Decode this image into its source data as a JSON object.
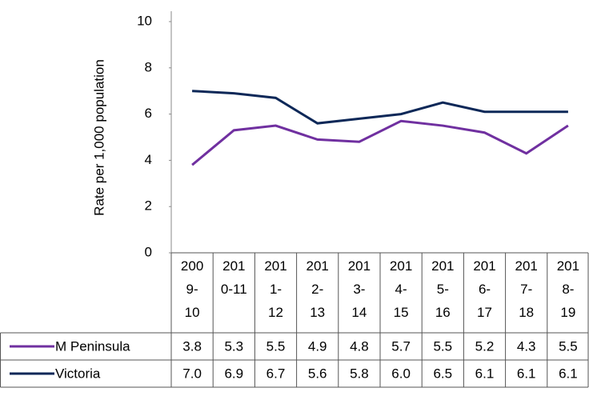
{
  "chart_data": {
    "type": "line",
    "y_label": "Rate per 1,000 population",
    "categories": [
      "2009-10",
      "2010-11",
      "2011-12",
      "2012-13",
      "2013-14",
      "2014-15",
      "2015-16",
      "2016-17",
      "2017-18",
      "2018-19"
    ],
    "series": [
      {
        "name": "M Peninsula",
        "color": "#7030a0",
        "values": [
          3.8,
          5.3,
          5.5,
          4.9,
          4.8,
          5.7,
          5.5,
          5.2,
          4.3,
          5.5
        ],
        "value_labels": [
          "3.8",
          "5.3",
          "5.5",
          "4.9",
          "4.8",
          "5.7",
          "5.5",
          "5.2",
          "4.3",
          "5.5"
        ]
      },
      {
        "name": "Victoria",
        "color": "#0d2858",
        "values": [
          7.0,
          6.9,
          6.7,
          5.6,
          5.8,
          6.0,
          6.5,
          6.1,
          6.1,
          6.1
        ],
        "value_labels": [
          "7.0",
          "6.9",
          "6.7",
          "5.6",
          "5.8",
          "6.0",
          "6.5",
          "6.1",
          "6.1",
          "6.1"
        ]
      }
    ],
    "ylim": [
      0,
      10
    ],
    "yticks": [
      0,
      2,
      4,
      6,
      8,
      10
    ],
    "grid": false,
    "data_table": true
  }
}
